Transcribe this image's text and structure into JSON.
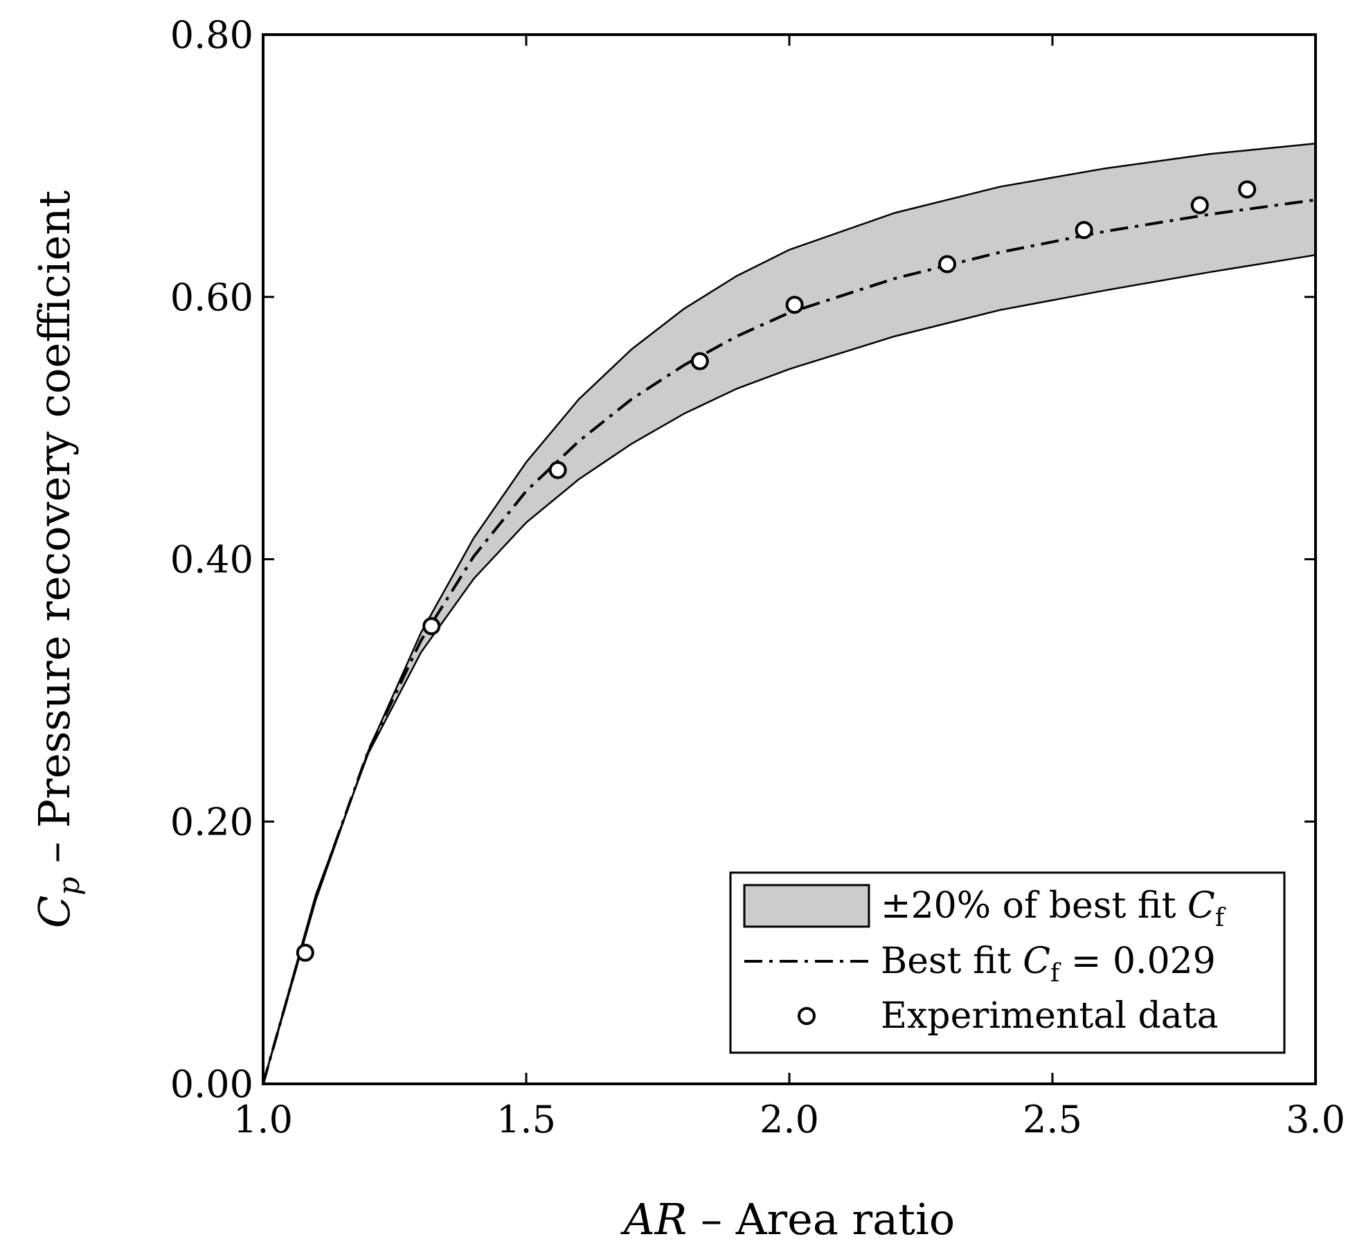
{
  "chart_data": {
    "type": "line",
    "xlabel": {
      "symbol": "AR",
      "text": " – Area ratio"
    },
    "ylabel": {
      "symbol": "C",
      "subscript": "p",
      "text": " – Pressure recovery coefficient"
    },
    "xlim": [
      1.0,
      3.0
    ],
    "ylim": [
      0.0,
      0.8
    ],
    "xticks": [
      1.0,
      1.5,
      2.0,
      2.5,
      3.0
    ],
    "xtick_labels": [
      "1.0",
      "1.5",
      "2.0",
      "2.5",
      "3.0"
    ],
    "yticks": [
      0.0,
      0.2,
      0.4,
      0.6,
      0.8
    ],
    "ytick_labels": [
      "0.00",
      "0.20",
      "0.40",
      "0.60",
      "0.80"
    ],
    "grid": false,
    "legend_position": "bottom-right",
    "legend": [
      {
        "kind": "band",
        "pre": "±20% of best fit ",
        "symbol": "C",
        "subscript": "f",
        "post": ""
      },
      {
        "kind": "line",
        "pre": "Best fit ",
        "symbol": "C",
        "subscript": "f",
        "post": " = 0.029"
      },
      {
        "kind": "marker",
        "pre": "Experimental data",
        "symbol": "",
        "subscript": "",
        "post": ""
      }
    ],
    "series": [
      {
        "name": "Best fit Cf = 0.029",
        "style": "dash-dot",
        "x": [
          1.0,
          1.1,
          1.2,
          1.3,
          1.4,
          1.5,
          1.6,
          1.7,
          1.8,
          1.9,
          2.0,
          2.2,
          2.4,
          2.6,
          2.8,
          3.0
        ],
        "y": [
          0.0,
          0.142,
          0.254,
          0.338,
          0.402,
          0.452,
          0.49,
          0.522,
          0.548,
          0.57,
          0.588,
          0.614,
          0.634,
          0.65,
          0.663,
          0.674
        ]
      },
      {
        "name": "+20% of best fit Cf",
        "style": "band-upper",
        "x": [
          1.0,
          1.1,
          1.2,
          1.3,
          1.4,
          1.5,
          1.6,
          1.7,
          1.8,
          1.9,
          2.0,
          2.2,
          2.4,
          2.6,
          2.8,
          3.0
        ],
        "y": [
          0.0,
          0.14,
          0.254,
          0.344,
          0.416,
          0.474,
          0.522,
          0.56,
          0.591,
          0.616,
          0.636,
          0.664,
          0.684,
          0.698,
          0.709,
          0.717
        ]
      },
      {
        "name": "-20% of best fit Cf",
        "style": "band-lower",
        "x": [
          1.0,
          1.1,
          1.2,
          1.3,
          1.4,
          1.5,
          1.6,
          1.7,
          1.8,
          1.9,
          2.0,
          2.2,
          2.4,
          2.6,
          2.8,
          3.0
        ],
        "y": [
          0.0,
          0.144,
          0.252,
          0.329,
          0.385,
          0.428,
          0.461,
          0.488,
          0.511,
          0.53,
          0.545,
          0.57,
          0.59,
          0.605,
          0.619,
          0.632
        ]
      },
      {
        "name": "Experimental data",
        "style": "marker",
        "x": [
          1.08,
          1.32,
          1.56,
          1.83,
          2.01,
          2.3,
          2.56,
          2.78,
          2.87
        ],
        "y": [
          0.1,
          0.349,
          0.468,
          0.551,
          0.594,
          0.625,
          0.651,
          0.67,
          0.682
        ]
      }
    ]
  }
}
